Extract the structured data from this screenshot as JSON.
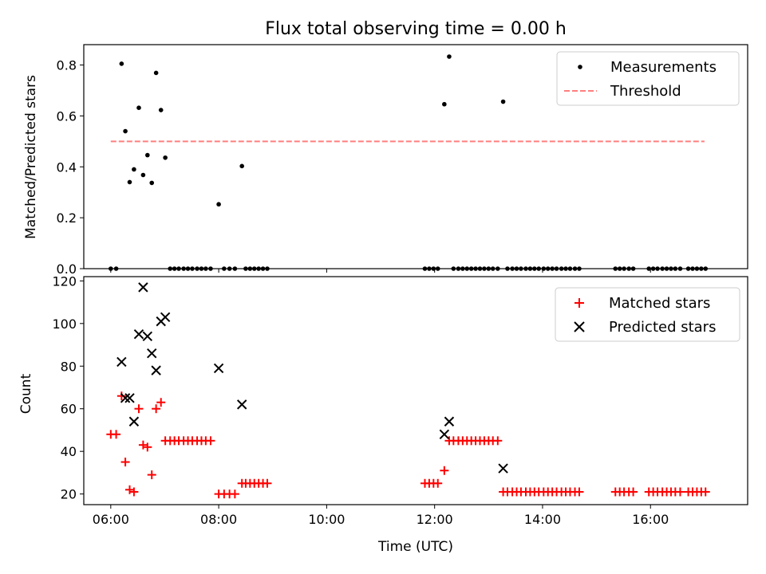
{
  "chart_data": [
    {
      "type": "scatter",
      "title": "Flux total observing time = 0.00 h",
      "ylabel": "Matched/Predicted stars",
      "xlabel": "",
      "xlim": [
        5.5,
        17.8
      ],
      "ylim": [
        0,
        0.88
      ],
      "yticks": [
        0.0,
        0.2,
        0.4,
        0.6,
        0.8
      ],
      "ytick_labels": [
        "0.0",
        "0.2",
        "0.4",
        "0.6",
        "0.8"
      ],
      "xticks": [
        6,
        8,
        10,
        12,
        14,
        16
      ],
      "threshold": {
        "value": 0.5,
        "x_start": 6.0,
        "x_end": 17.0,
        "color": "#ff7f7f"
      },
      "legend": {
        "position": "top-right",
        "entries": [
          "Measurements",
          "Threshold"
        ]
      },
      "series": [
        {
          "name": "Measurements",
          "color": "#000000",
          "x": [
            6.0,
            6.1,
            6.2,
            6.27,
            6.35,
            6.43,
            6.52,
            6.6,
            6.68,
            6.76,
            6.84,
            6.93,
            7.01,
            7.1,
            7.18,
            7.26,
            7.35,
            7.43,
            7.51,
            7.6,
            7.68,
            7.76,
            7.85,
            8.0,
            8.1,
            8.2,
            8.3,
            8.43,
            8.5,
            8.58,
            8.66,
            8.74,
            8.82,
            8.9,
            11.82,
            11.9,
            11.98,
            12.06,
            12.18,
            12.27,
            12.35,
            12.44,
            12.52,
            12.6,
            12.68,
            12.76,
            12.84,
            12.92,
            13.0,
            13.08,
            13.17,
            13.27,
            13.35,
            13.44,
            13.52,
            13.6,
            13.69,
            13.77,
            13.85,
            13.93,
            14.02,
            14.1,
            14.18,
            14.26,
            14.35,
            14.43,
            14.51,
            14.6,
            14.68,
            15.35,
            15.43,
            15.51,
            15.6,
            15.68,
            15.97,
            16.05,
            16.13,
            16.22,
            16.3,
            16.38,
            16.46,
            16.55,
            16.7,
            16.78,
            16.86,
            16.94,
            17.02
          ],
          "values": [
            0,
            0,
            0.805,
            0.54,
            0.34,
            0.39,
            0.632,
            0.368,
            0.446,
            0.337,
            0.769,
            0.623,
            0.436,
            0,
            0,
            0,
            0,
            0,
            0,
            0,
            0,
            0,
            0,
            0.253,
            0,
            0,
            0,
            0.403,
            0,
            0,
            0,
            0,
            0,
            0,
            0,
            0,
            0,
            0,
            0.646,
            0.833,
            0,
            0,
            0,
            0,
            0,
            0,
            0,
            0,
            0,
            0,
            0,
            0.656,
            0,
            0,
            0,
            0,
            0,
            0,
            0,
            0,
            0,
            0,
            0,
            0,
            0,
            0,
            0,
            0,
            0,
            0,
            0,
            0,
            0,
            0,
            0,
            0,
            0,
            0,
            0,
            0,
            0,
            0,
            0,
            0,
            0,
            0,
            0
          ]
        }
      ]
    },
    {
      "type": "scatter",
      "title": "",
      "ylabel": "Count",
      "xlabel": "Time (UTC)",
      "xlim": [
        5.5,
        17.8
      ],
      "ylim": [
        15,
        122
      ],
      "yticks": [
        20,
        40,
        60,
        80,
        100,
        120
      ],
      "ytick_labels": [
        "20",
        "40",
        "60",
        "80",
        "100",
        "120"
      ],
      "xticks": [
        6,
        8,
        10,
        12,
        14,
        16
      ],
      "xtick_labels": [
        "06:00",
        "08:00",
        "10:00",
        "12:00",
        "14:00",
        "16:00"
      ],
      "legend": {
        "position": "top-right",
        "entries": [
          "Matched stars",
          "Predicted stars"
        ]
      },
      "series": [
        {
          "name": "Matched stars",
          "marker": "plus",
          "color": "#ff0000",
          "x": [
            6.0,
            6.1,
            6.2,
            6.27,
            6.35,
            6.43,
            6.52,
            6.6,
            6.68,
            6.76,
            6.84,
            6.93,
            7.01,
            7.1,
            7.18,
            7.26,
            7.35,
            7.43,
            7.51,
            7.6,
            7.68,
            7.76,
            7.85,
            8.0,
            8.1,
            8.2,
            8.3,
            8.43,
            8.5,
            8.58,
            8.66,
            8.74,
            8.82,
            8.9,
            11.82,
            11.9,
            11.98,
            12.06,
            12.18,
            12.27,
            12.35,
            12.44,
            12.52,
            12.6,
            12.68,
            12.76,
            12.84,
            12.92,
            13.0,
            13.08,
            13.17,
            13.27,
            13.35,
            13.44,
            13.52,
            13.6,
            13.69,
            13.77,
            13.85,
            13.93,
            14.02,
            14.1,
            14.18,
            14.26,
            14.35,
            14.43,
            14.51,
            14.6,
            14.68,
            15.35,
            15.43,
            15.51,
            15.6,
            15.68,
            15.97,
            16.05,
            16.13,
            16.22,
            16.3,
            16.38,
            16.46,
            16.55,
            16.7,
            16.78,
            16.86,
            16.94,
            17.02
          ],
          "values": [
            48,
            48,
            66,
            35,
            22,
            21,
            60,
            43,
            42,
            29,
            60,
            63,
            45,
            45,
            45,
            45,
            45,
            45,
            45,
            45,
            45,
            45,
            45,
            20,
            20,
            20,
            20,
            25,
            25,
            25,
            25,
            25,
            25,
            25,
            25,
            25,
            25,
            25,
            31,
            45,
            45,
            45,
            45,
            45,
            45,
            45,
            45,
            45,
            45,
            45,
            45,
            21,
            21,
            21,
            21,
            21,
            21,
            21,
            21,
            21,
            21,
            21,
            21,
            21,
            21,
            21,
            21,
            21,
            21,
            21,
            21,
            21,
            21,
            21,
            21,
            21,
            21,
            21,
            21,
            21,
            21,
            21,
            21,
            21,
            21,
            21,
            21
          ]
        },
        {
          "name": "Predicted stars",
          "marker": "x",
          "color": "#000000",
          "x": [
            6.2,
            6.27,
            6.35,
            6.43,
            6.52,
            6.6,
            6.68,
            6.76,
            6.84,
            6.93,
            7.01,
            8.0,
            8.43,
            12.18,
            12.27,
            13.27
          ],
          "values": [
            82,
            65,
            65,
            54,
            95,
            117,
            94,
            86,
            78,
            101,
            103,
            79,
            62,
            48,
            54,
            32
          ]
        }
      ]
    }
  ]
}
